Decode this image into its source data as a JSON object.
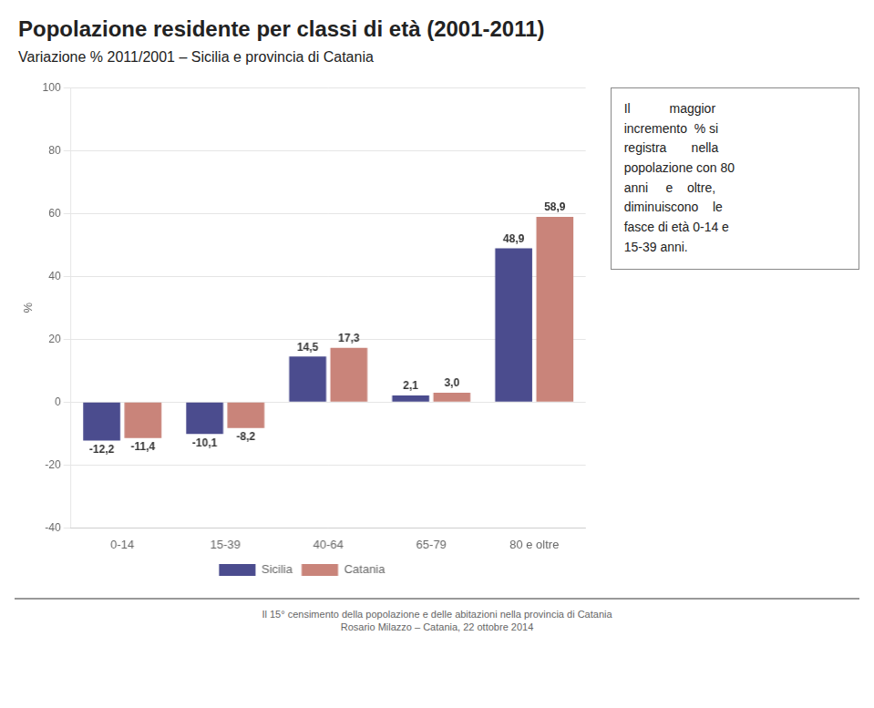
{
  "chart_data": {
    "type": "bar",
    "title": "Popolazione residente per classi di età (2001-2011)",
    "subtitle": "Variazione  % 2011/2001 – Sicilia e provincia di Catania",
    "categories": [
      "0-14",
      "15-39",
      "40-64",
      "65-79",
      "80 e oltre"
    ],
    "series": [
      {
        "name": "Sicilia",
        "color": "#4B4C8E",
        "values": [
          -12.2,
          -10.1,
          14.5,
          2.1,
          48.9
        ],
        "value_labels": [
          "-12,2",
          "-10,1",
          "14,5",
          "2,1",
          "48,9"
        ]
      },
      {
        "name": "Catania",
        "color": "#C9847A",
        "values": [
          -11.4,
          -8.2,
          17.3,
          3.0,
          58.9
        ],
        "value_labels": [
          "-11,4",
          "-8,2",
          "17,3",
          "3,0",
          "58,9"
        ]
      }
    ],
    "ylabel": "%",
    "ylim": [
      -40,
      100
    ],
    "yticks": [
      -40,
      -20,
      0,
      20,
      40,
      60,
      80,
      100
    ],
    "grid": true,
    "legend": "bottom",
    "data_labels": true,
    "annotation": [
      "Il           maggior",
      "incremento  % si",
      "registra       nella",
      "popolazione con 80",
      "anni     e    oltre,",
      "diminuiscono    le",
      "fasce di età 0-14 e",
      "15-39 anni."
    ],
    "footer": [
      "Il 15° censimento della popolazione e delle abitazioni nella provincia di Catania",
      "Rosario Milazzo – Catania, 22 ottobre 2014"
    ]
  }
}
